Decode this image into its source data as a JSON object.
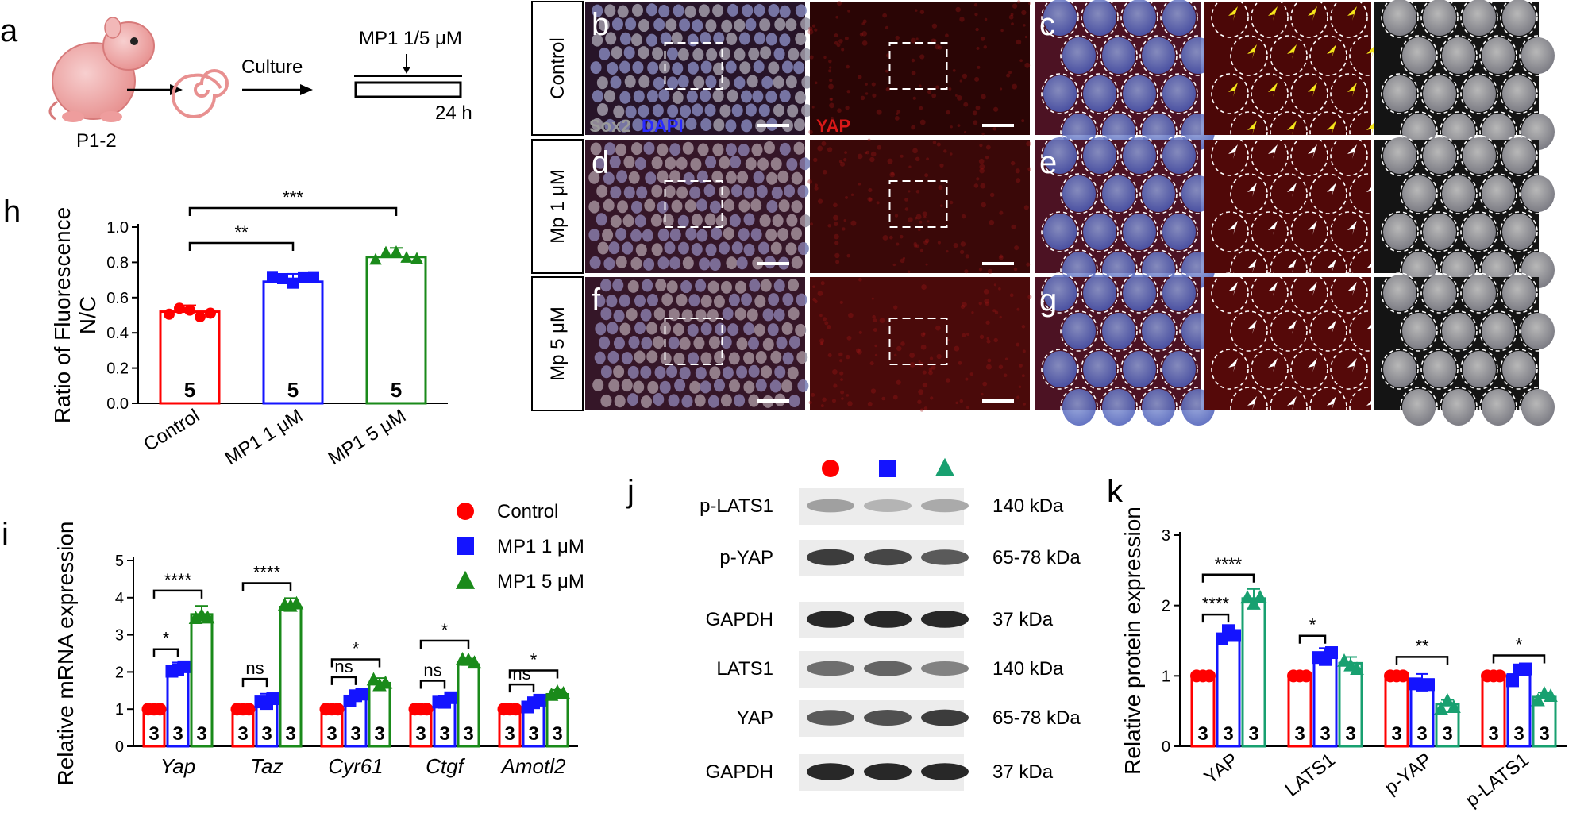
{
  "panel_letters": {
    "a": "a",
    "b": "b",
    "c": "c",
    "d": "d",
    "e": "e",
    "f": "f",
    "g": "g",
    "h": "h",
    "i": "i",
    "j": "j",
    "k": "k"
  },
  "schematic": {
    "age": "P1-2",
    "culture": "Culture",
    "treatment": "MP1 1/5 μM",
    "duration": "24 h"
  },
  "microscopy": {
    "rows": [
      "Control",
      "Mp 1 μM",
      "Mp 5 μM"
    ],
    "stain_sox2": "Sox2",
    "stain_dapi": "DAPI",
    "stain_yap": "YAP"
  },
  "colors": {
    "control": "#ff0000",
    "mp1": "#1414ff",
    "mp5": "#1a8a1a",
    "mp5_k": "#18a070",
    "arrow_yellow": "#f5e51a"
  },
  "icons": [
    "red-circle-marker",
    "blue-square-marker",
    "green-triangle-marker"
  ],
  "chart_data": [
    {
      "id": "h",
      "type": "bar",
      "ylabel": "Ratio of Fluorescence N/C",
      "ylabel_line1": "Ratio of Fluorescence",
      "ylabel_line2": "N/C",
      "ylim": [
        0,
        1.0
      ],
      "yticks": [
        "0.0",
        "0.2",
        "0.4",
        "0.6",
        "0.8",
        "1.0"
      ],
      "categories": [
        "Control",
        "MP1 1 μM",
        "MP1 5 μM"
      ],
      "values": [
        0.52,
        0.69,
        0.83
      ],
      "n": [
        "5",
        "5",
        "5"
      ],
      "significance": [
        {
          "from": 0,
          "to": 1,
          "label": "**"
        },
        {
          "from": 0,
          "to": 2,
          "label": "***"
        }
      ]
    },
    {
      "id": "i",
      "type": "bar",
      "ylabel": "Relative mRNA expression",
      "ylim": [
        0,
        5
      ],
      "yticks": [
        "0",
        "1",
        "2",
        "3",
        "4",
        "5"
      ],
      "categories": [
        "Yap",
        "Taz",
        "Cyr61",
        "Ctgf",
        "Amotl2"
      ],
      "series": [
        {
          "name": "Control",
          "values": [
            1.0,
            1.0,
            1.0,
            1.0,
            1.0
          ]
        },
        {
          "name": "MP1 1 μM",
          "values": [
            2.1,
            1.3,
            1.35,
            1.25,
            1.15
          ]
        },
        {
          "name": "MP1 5 μM",
          "values": [
            3.55,
            3.75,
            1.7,
            2.2,
            1.4
          ]
        }
      ],
      "n": "3",
      "significance": [
        {
          "group": 0,
          "pair": [
            0,
            1
          ],
          "label": "*"
        },
        {
          "group": 0,
          "pair": [
            0,
            2
          ],
          "label": "****"
        },
        {
          "group": 1,
          "pair": [
            0,
            1
          ],
          "label": "ns"
        },
        {
          "group": 1,
          "pair": [
            0,
            2
          ],
          "label": "****"
        },
        {
          "group": 2,
          "pair": [
            0,
            1
          ],
          "label": "ns"
        },
        {
          "group": 2,
          "pair": [
            0,
            2
          ],
          "label": "*"
        },
        {
          "group": 3,
          "pair": [
            0,
            1
          ],
          "label": "ns"
        },
        {
          "group": 3,
          "pair": [
            0,
            2
          ],
          "label": "*"
        },
        {
          "group": 4,
          "pair": [
            0,
            1
          ],
          "label": "ns"
        },
        {
          "group": 4,
          "pair": [
            0,
            2
          ],
          "label": "*"
        }
      ]
    },
    {
      "id": "k",
      "type": "bar",
      "ylabel": "Relative protein expression",
      "ylim": [
        0,
        3
      ],
      "yticks": [
        "0",
        "1",
        "2",
        "3"
      ],
      "categories": [
        "YAP",
        "LATS1",
        "p-YAP",
        "p-LATS1"
      ],
      "series": [
        {
          "name": "Control",
          "values": [
            1.0,
            1.0,
            1.0,
            1.0
          ]
        },
        {
          "name": "MP1 1 μM",
          "values": [
            1.6,
            1.3,
            0.95,
            1.02
          ]
        },
        {
          "name": "MP1 5 μM",
          "values": [
            2.1,
            1.18,
            0.6,
            0.7
          ]
        }
      ],
      "n": "3",
      "significance": [
        {
          "group": 0,
          "pair": [
            0,
            1
          ],
          "label": "****"
        },
        {
          "group": 0,
          "pair": [
            0,
            2
          ],
          "label": "****"
        },
        {
          "group": 1,
          "pair": [
            0,
            1
          ],
          "label": "*"
        },
        {
          "group": 2,
          "pair": [
            0,
            2
          ],
          "label": "**"
        },
        {
          "group": 3,
          "pair": [
            0,
            2
          ],
          "label": "*"
        }
      ]
    }
  ],
  "western": {
    "bands": [
      {
        "label": "p-LATS1",
        "size": "140 kDa",
        "intensity": [
          0.35,
          0.25,
          0.3
        ]
      },
      {
        "label": "p-YAP",
        "size": "65-78 kDa",
        "intensity": [
          0.85,
          0.8,
          0.7
        ]
      },
      {
        "label": "GAPDH",
        "size": "37 kDa",
        "intensity": [
          0.95,
          0.95,
          0.95
        ]
      },
      {
        "label": "LATS1",
        "size": "140 kDa",
        "intensity": [
          0.6,
          0.65,
          0.5
        ]
      },
      {
        "label": "YAP",
        "size": "65-78 kDa",
        "intensity": [
          0.7,
          0.75,
          0.85
        ]
      },
      {
        "label": "GAPDH",
        "size": "37 kDa",
        "intensity": [
          0.95,
          0.95,
          0.95
        ]
      }
    ]
  }
}
